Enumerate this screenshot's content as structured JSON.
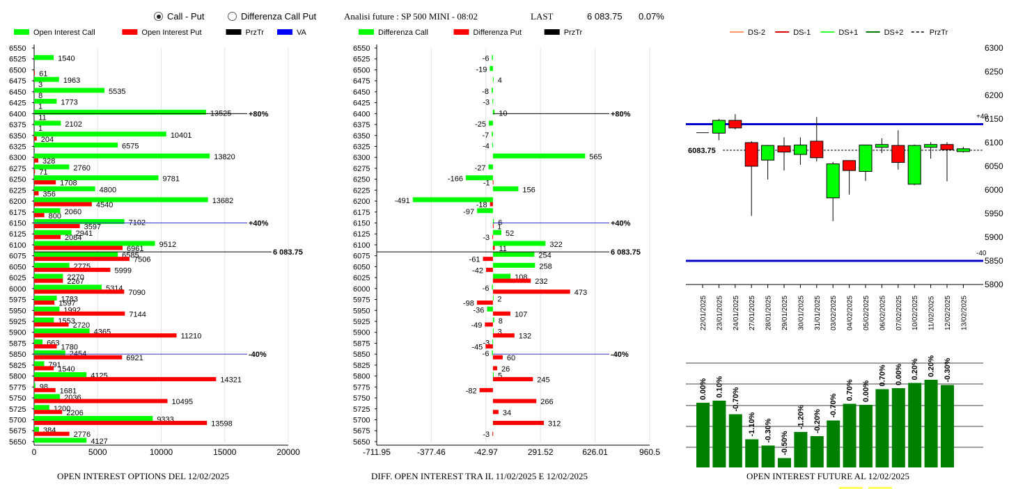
{
  "header": {
    "radio_call_put": "Call - Put",
    "radio_diff": "Differenza Call Put",
    "title": "Analisi future : SP 500 MINI - 08:02",
    "last_label": "LAST",
    "last_value": "6 083.75",
    "change": "0.07%"
  },
  "colors": {
    "call": "#00ff00",
    "put": "#ff0000",
    "przTr": "#000000",
    "va": "#0000ff",
    "candleUp": "#00ff00",
    "candleDown": "#ff0000",
    "oiBar": "#008000"
  },
  "chart_data": [
    {
      "type": "bar",
      "orientation": "horizontal",
      "caption": "OPEN INTEREST OPTIONS DEL 12/02/2025",
      "legend": [
        "Open Interest Call",
        "Open Interest Put",
        "PrzTr",
        "VA"
      ],
      "strikes": [
        6550,
        6525,
        6500,
        6475,
        6450,
        6425,
        6400,
        6375,
        6350,
        6325,
        6300,
        6275,
        6250,
        6225,
        6200,
        6175,
        6150,
        6125,
        6100,
        6075,
        6050,
        6025,
        6000,
        5975,
        5950,
        5925,
        5900,
        5875,
        5850,
        5825,
        5800,
        5775,
        5750,
        5725,
        5700,
        5675,
        5650
      ],
      "series": [
        {
          "name": "Open Interest Call",
          "values": [
            null,
            1540,
            null,
            1963,
            5535,
            1773,
            13525,
            2102,
            10401,
            6575,
            13820,
            2760,
            9781,
            4800,
            13682,
            2060,
            7102,
            2941,
            9512,
            6585,
            2775,
            2270,
            5314,
            1783,
            1992,
            1553,
            4365,
            663,
            2454,
            791,
            4125,
            98,
            2036,
            1200,
            9333,
            384,
            4127
          ]
        },
        {
          "name": "Open Interest Put",
          "values": [
            null,
            null,
            61,
            3,
            8,
            1,
            11,
            1,
            204,
            null,
            328,
            71,
            1708,
            356,
            4540,
            800,
            3597,
            2084,
            6961,
            7506,
            5999,
            2267,
            7090,
            1597,
            7144,
            2720,
            11210,
            1780,
            6921,
            1540,
            14321,
            1681,
            10495,
            2206,
            13598,
            2776,
            null
          ]
        }
      ],
      "xticks": [
        0,
        5000,
        10000,
        15000,
        20000
      ],
      "xlim": [
        0,
        20000
      ],
      "lines": [
        {
          "label": "+80%",
          "strike": 6400
        },
        {
          "label": "+40%",
          "strike": 6150
        },
        {
          "label": "6 083.75",
          "strike": 6083.75
        },
        {
          "label": "-40%",
          "strike": 5850
        }
      ]
    },
    {
      "type": "bar",
      "orientation": "horizontal",
      "caption": "DIFF. OPEN INTEREST TRA IL 11/02/2025 E 12/02/2025",
      "legend": [
        "Differenza Call",
        "Differenza Put",
        "PrzTr"
      ],
      "strikes": [
        6550,
        6525,
        6500,
        6475,
        6450,
        6425,
        6400,
        6375,
        6350,
        6325,
        6300,
        6275,
        6250,
        6225,
        6200,
        6175,
        6150,
        6125,
        6100,
        6075,
        6050,
        6025,
        6000,
        5975,
        5950,
        5925,
        5900,
        5875,
        5850,
        5825,
        5800,
        5775,
        5750,
        5725,
        5700,
        5675,
        5650
      ],
      "series": [
        {
          "name": "Differenza Call",
          "values": [
            null,
            -6,
            -19,
            4,
            -8,
            -3,
            10,
            -25,
            -7,
            -4,
            565,
            -27,
            -166,
            156,
            -491,
            -97,
            6,
            52,
            322,
            254,
            258,
            108,
            -6,
            2,
            -36,
            8,
            3,
            -3,
            -6,
            null,
            5,
            null,
            null,
            null,
            null,
            null,
            null
          ]
        },
        {
          "name": "Differenza Put",
          "values": [
            null,
            null,
            null,
            null,
            null,
            null,
            null,
            null,
            null,
            null,
            null,
            null,
            -1,
            null,
            -18,
            null,
            1,
            -3,
            11,
            -61,
            -42,
            232,
            473,
            -98,
            107,
            -49,
            132,
            -45,
            60,
            26,
            245,
            -82,
            266,
            34,
            312,
            -3,
            null
          ]
        }
      ],
      "xticks": [
        "-711.95",
        "-377.46",
        "-42.97",
        "291.52",
        "626.01",
        "960.5"
      ],
      "xlim": [
        -711.95,
        960.5
      ]
    },
    {
      "type": "candlestick",
      "legend": [
        "DS-2",
        "DS-1",
        "DS+1",
        "DS+2",
        "PrzTr"
      ],
      "dates": [
        "22/01/2025",
        "23/01/2025",
        "24/01/2025",
        "27/01/2025",
        "28/01/2025",
        "29/01/2025",
        "30/01/2025",
        "31/01/2025",
        "03/02/2025",
        "04/02/2025",
        "05/02/2025",
        "06/02/2025",
        "07/02/2025",
        "10/02/2025",
        "11/02/2025",
        "12/02/2025",
        "13/02/2025"
      ],
      "ohlc": [
        {
          "o": 6121,
          "h": 6121,
          "l": 6121,
          "c": 6121
        },
        {
          "o": 6120,
          "h": 6150,
          "l": 6105,
          "c": 6147
        },
        {
          "o": 6147,
          "h": 6160,
          "l": 6128,
          "c": 6131
        },
        {
          "o": 6100,
          "h": 6103,
          "l": 5945,
          "c": 6050
        },
        {
          "o": 6063,
          "h": 6095,
          "l": 6022,
          "c": 6094
        },
        {
          "o": 6093,
          "h": 6111,
          "l": 6041,
          "c": 6080
        },
        {
          "o": 6075,
          "h": 6111,
          "l": 6053,
          "c": 6095
        },
        {
          "o": 6103,
          "h": 6154,
          "l": 6060,
          "c": 6068
        },
        {
          "o": 5983,
          "h": 6059,
          "l": 5934,
          "c": 6055
        },
        {
          "o": 6062,
          "h": 6062,
          "l": 5990,
          "c": 6041
        },
        {
          "o": 6039,
          "h": 6095,
          "l": 6019,
          "c": 6095
        },
        {
          "o": 6090,
          "h": 6109,
          "l": 6078,
          "c": 6096
        },
        {
          "o": 6094,
          "h": 6126,
          "l": 6043,
          "c": 6058
        },
        {
          "o": 6012,
          "h": 6096,
          "l": 6010,
          "c": 6094
        },
        {
          "o": 6090,
          "h": 6101,
          "l": 6066,
          "c": 6096
        },
        {
          "o": 6096,
          "h": 6101,
          "l": 6018,
          "c": 6085
        },
        {
          "o": 6081,
          "h": 6091,
          "l": 6079,
          "c": 6087
        }
      ],
      "ylim": [
        5800,
        6300
      ],
      "yticks": [
        6300,
        6250,
        6200,
        6150,
        6100,
        6050,
        6000,
        5950,
        5900,
        5850,
        5800
      ],
      "price": 6083.75,
      "price_label": "6083.75",
      "band_upper": {
        "value": 6139,
        "label": "+40"
      },
      "band_lower": {
        "value": 5850,
        "label": "-40"
      }
    },
    {
      "type": "bar",
      "caption": "OPEN INTEREST FUTURE AL 12/02/2025",
      "labels": [
        "0.00%",
        "0.10%",
        "-0.70%",
        "-1.10%",
        "-0.30%",
        "-0.50%",
        "-1.20%",
        "-0.20%",
        "-0.70%",
        "0.70%",
        "0.00%",
        "0.70%",
        "0.00%",
        "0.20%",
        "0.20%",
        "-0.30%"
      ],
      "values": [
        0.62,
        0.64,
        0.51,
        0.27,
        0.21,
        0.09,
        0.34,
        0.3,
        0.45,
        0.61,
        0.6,
        0.75,
        0.76,
        0.81,
        0.84,
        0.79
      ]
    }
  ]
}
